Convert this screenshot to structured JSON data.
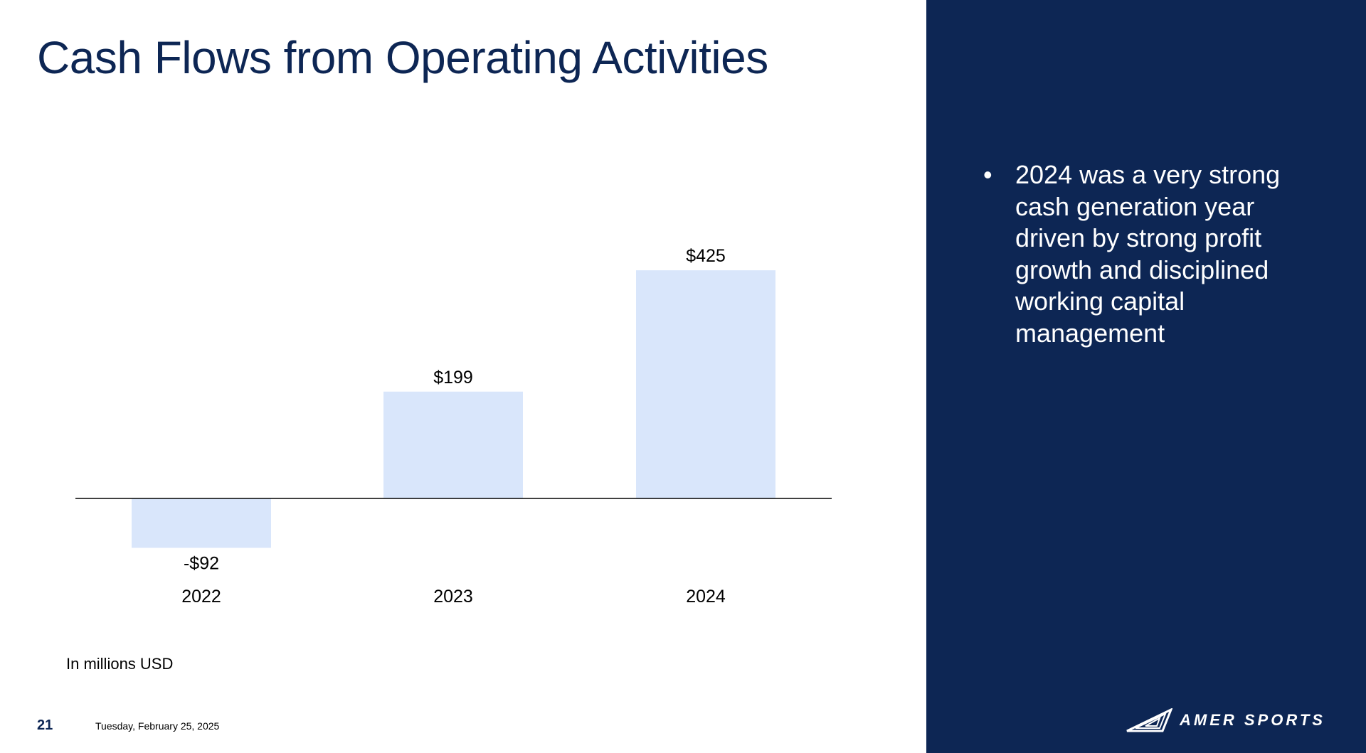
{
  "slide": {
    "title": "Cash Flows from Operating Activities",
    "unit_note": "In millions USD",
    "page_number": "21",
    "date": "Tuesday, February 25, 2025",
    "bullet_marker": "•",
    "bullet_text": "2024 was a very strong cash generation year driven by strong profit growth and disciplined working capital management",
    "logo_text": "AMER SPORTS",
    "colors": {
      "brand_navy": "#0d2654",
      "bar_fill": "#d9e6fb",
      "axis": "#000000"
    }
  },
  "chart_data": {
    "type": "bar",
    "title": "Cash Flows from Operating Activities",
    "categories": [
      "2022",
      "2023",
      "2024"
    ],
    "values": [
      -92,
      199,
      425
    ],
    "data_labels": [
      "-$92",
      "$199",
      "$425"
    ],
    "xlabel": "",
    "ylabel": "",
    "unit": "In millions USD",
    "ylim": [
      -92,
      425
    ],
    "grid": false,
    "legend": "none"
  }
}
